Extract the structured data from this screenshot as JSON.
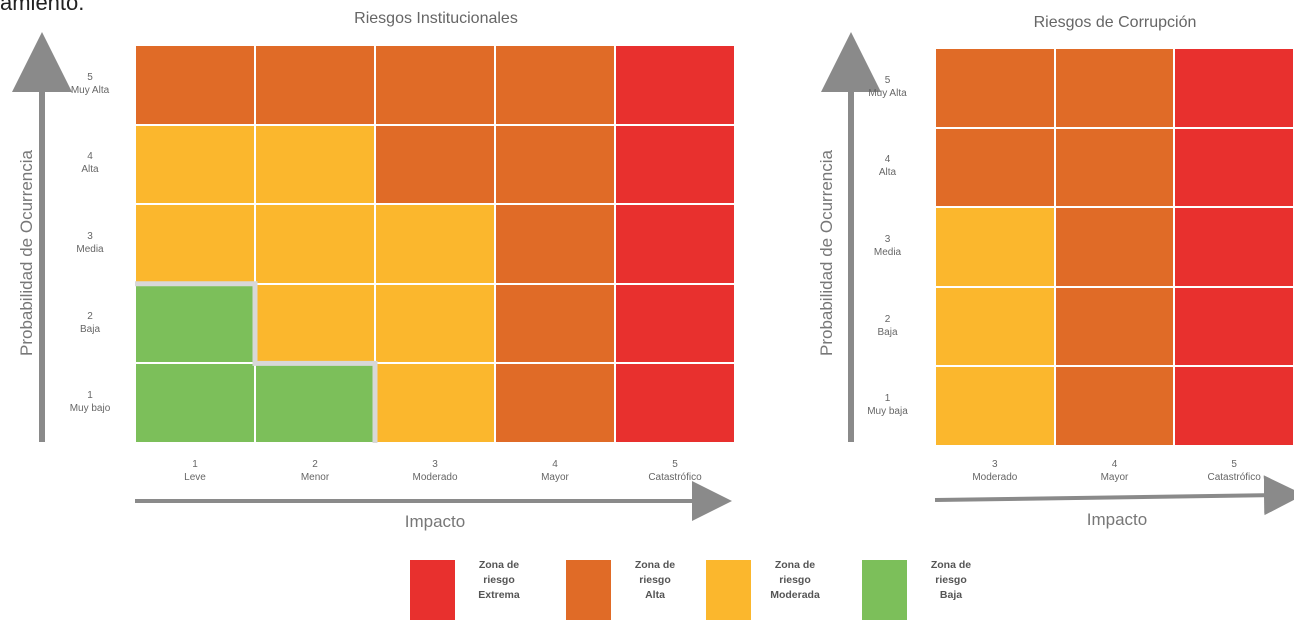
{
  "caption_fragment": "amiento.",
  "legend": [
    {
      "key": "extreme",
      "label": "Zona de\nriesgo\nExtrema",
      "color": "#e8302e"
    },
    {
      "key": "high",
      "label": "Zona de\nriesgo\nAlta",
      "color": "#e06b27"
    },
    {
      "key": "moderate",
      "label": "Zona de\nriesgo\nModerada",
      "color": "#fbb72d"
    },
    {
      "key": "low",
      "label": "Zona de\nriesgo\nBaja",
      "color": "#7cbf5a"
    }
  ],
  "chart_data": [
    {
      "type": "heatmap",
      "title": "Riesgos Institucionales",
      "ylabel": "Probabilidad de Ocurrencia",
      "xlabel": "Impacto",
      "rows": [
        "5\nMuy Alta",
        "4\nAlta",
        "3\nMedia",
        "2\nBaja",
        "1\nMuy bajo"
      ],
      "columns": [
        "1\nLeve",
        "2\nMenor",
        "3\nModerado",
        "4\nMayor",
        "5\nCatastrófico"
      ],
      "cells": [
        [
          "high",
          "high",
          "high",
          "high",
          "extreme"
        ],
        [
          "moderate",
          "moderate",
          "high",
          "high",
          "extreme"
        ],
        [
          "moderate",
          "moderate",
          "moderate",
          "high",
          "extreme"
        ],
        [
          "low",
          "moderate",
          "moderate",
          "high",
          "extreme"
        ],
        [
          "low",
          "low",
          "moderate",
          "high",
          "extreme"
        ]
      ]
    },
    {
      "type": "heatmap",
      "title": "Riesgos de Corrupción",
      "ylabel": "Probabilidad de Ocurrencia",
      "xlabel": "Impacto",
      "rows": [
        "5\nMuy Alta",
        "4\nAlta",
        "3\nMedia",
        "2\nBaja",
        "1\nMuy baja"
      ],
      "columns": [
        "3\nModerado",
        "4\nMayor",
        "5\nCatastrófico"
      ],
      "cells": [
        [
          "high",
          "high",
          "extreme"
        ],
        [
          "high",
          "high",
          "extreme"
        ],
        [
          "moderate",
          "high",
          "extreme"
        ],
        [
          "moderate",
          "high",
          "extreme"
        ],
        [
          "moderate",
          "high",
          "extreme"
        ]
      ]
    }
  ]
}
